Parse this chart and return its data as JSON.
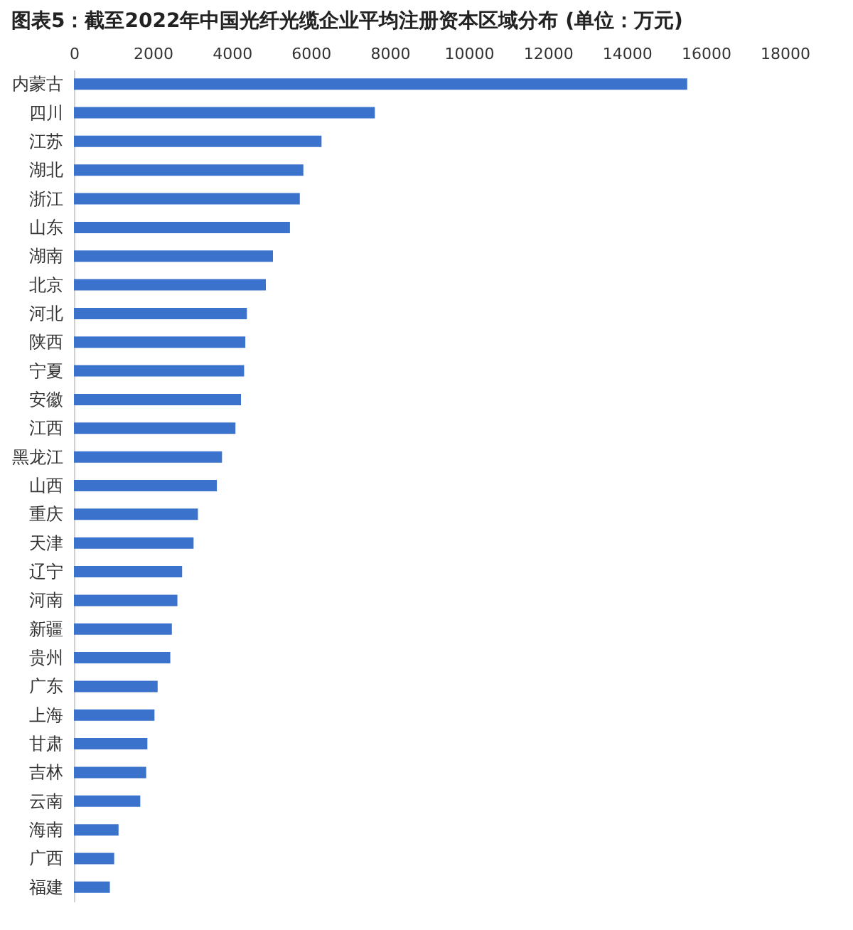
{
  "chart_data": {
    "type": "bar",
    "orientation": "horizontal",
    "title": "图表5：截至2022年中国光纤光缆企业平均注册资本区域分布 (单位：万元)",
    "categories": [
      "内蒙古",
      "四川",
      "江苏",
      "湖北",
      "浙江",
      "山东",
      "湖南",
      "北京",
      "河北",
      "陕西",
      "宁夏",
      "安徽",
      "江西",
      "黑龙江",
      "山西",
      "重庆",
      "天津",
      "辽宁",
      "河南",
      "新疆",
      "贵州",
      "广东",
      "上海",
      "甘肃",
      "吉林",
      "云南",
      "海南",
      "广西",
      "福建"
    ],
    "values": [
      15530,
      7620,
      6270,
      5810,
      5720,
      5470,
      5040,
      4860,
      4380,
      4340,
      4310,
      4230,
      4090,
      3750,
      3620,
      3140,
      3030,
      2740,
      2620,
      2480,
      2440,
      2120,
      2040,
      1860,
      1830,
      1680,
      1130,
      1020,
      910
    ],
    "color": "#3b73cc",
    "xlim": [
      0,
      18000
    ],
    "xticks": [
      0,
      2000,
      4000,
      6000,
      8000,
      10000,
      12000,
      14000,
      16000,
      18000
    ],
    "grid": false
  }
}
